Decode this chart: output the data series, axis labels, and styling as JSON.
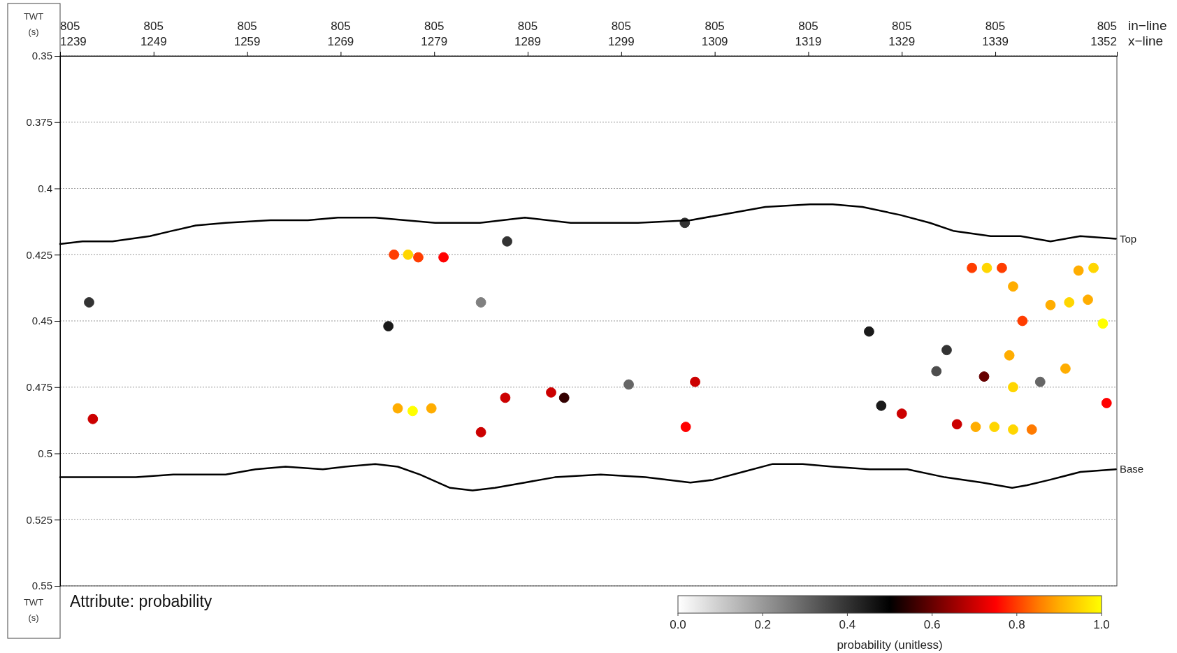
{
  "chart_data": {
    "type": "line",
    "xlabel": "x−line",
    "x2label": "in−line",
    "ylabel": "TWT\n(s)",
    "clabel": "probability  (unitless)",
    "xlim": [
      1239,
      1352
    ],
    "xticks": [
      1239,
      1249,
      1259,
      1269,
      1279,
      1289,
      1299,
      1309,
      1319,
      1329,
      1339,
      1352
    ],
    "ylim": [
      0.55,
      0.35
    ],
    "yticks": [
      0.35,
      0.375,
      0.4,
      0.425,
      0.45,
      0.475,
      0.5,
      0.525,
      0.55
    ],
    "grid": "y",
    "marker": "none",
    "line_style": "solid",
    "clim": [
      0,
      1
    ],
    "cticks": [
      {
        "value": 0,
        "label": "0.0"
      },
      {
        "value": 0.2,
        "label": "0.2"
      },
      {
        "value": 0.4,
        "label": "0.4"
      },
      {
        "value": 0.6,
        "label": "0.6"
      },
      {
        "value": 0.8,
        "label": "0.8"
      },
      {
        "value": 1,
        "label": "1.0"
      }
    ],
    "annotations": [
      "Attribute: probability",
      "805",
      "805",
      "805",
      "805",
      "805",
      "805",
      "805",
      "805",
      "805",
      "805",
      "805",
      "805"
    ],
    "series": [
      {
        "type": "scatter",
        "marker": "circle",
        "colors": [
          "#333333",
          "#ff3d00",
          "#ffd600",
          "#ff3d00",
          "#ff0000",
          "#333333",
          "#333333",
          "#1a1a1a",
          "#808080",
          "#1a1a1a",
          "#ff3d00",
          "#ffd600",
          "#ff3d00",
          "#ffad00",
          "#ff3d00",
          "#ffad00",
          "#ffd600",
          "#ffad00",
          "#ffd600",
          "#ffad00",
          "#ffff00",
          "#333333",
          "#ffad00",
          "#4d4d4d",
          "#ffad00",
          "#660000",
          "#ffd600",
          "#666666",
          "#ff0000",
          "#1a1a1a",
          "#cc0000",
          "#cc0000",
          "#ffad00",
          "#ffd600",
          "#ffd600",
          "#ff7a00",
          "#ffad00",
          "#ffff00",
          "#ffad00",
          "#cc0000",
          "#cc0000",
          "#cc0000",
          "#330000",
          "#cc0000",
          "#ff0000",
          "#cc0000",
          "#666666"
        ],
        "x": [
          1242.1,
          1274.7,
          1276.2,
          1277.3,
          1280.0,
          1286.8,
          1305.8,
          1274.1,
          1284.0,
          1325.5,
          1336.5,
          1338.1,
          1339.7,
          1340.9,
          1341.9,
          1347.9,
          1349.5,
          1344.9,
          1346.9,
          1348.9,
          1350.5,
          1333.8,
          1340.5,
          1332.7,
          1346.5,
          1337.8,
          1340.9,
          1343.8,
          1350.9,
          1326.8,
          1329.0,
          1334.9,
          1336.9,
          1338.9,
          1340.9,
          1342.9,
          1275.1,
          1276.7,
          1278.7,
          1242.5,
          1286.6,
          1291.5,
          1292.9,
          1284.0,
          1305.9,
          1306.9,
          1299.8
        ],
        "values": [
          0.443,
          0.425,
          0.425,
          0.426,
          0.426,
          0.42,
          0.413,
          0.452,
          0.443,
          0.454,
          0.43,
          0.43,
          0.43,
          0.437,
          0.45,
          0.431,
          0.43,
          0.444,
          0.443,
          0.442,
          0.451,
          0.461,
          0.463,
          0.469,
          0.468,
          0.471,
          0.475,
          0.473,
          0.481,
          0.482,
          0.485,
          0.489,
          0.49,
          0.49,
          0.491,
          0.491,
          0.483,
          0.484,
          0.483,
          0.487,
          0.479,
          0.477,
          0.479,
          0.492,
          0.49,
          0.473,
          0.474
        ],
        "cvalues": [
          0.4,
          0.8,
          0.95,
          0.8,
          0.75,
          0.4,
          0.4,
          0.45,
          0.25,
          0.45,
          0.8,
          0.95,
          0.8,
          0.9,
          0.8,
          0.9,
          0.95,
          0.9,
          0.95,
          0.9,
          1.0,
          0.4,
          0.9,
          0.35,
          0.9,
          0.6,
          0.95,
          0.3,
          0.75,
          0.45,
          0.7,
          0.7,
          0.9,
          0.95,
          0.95,
          0.85,
          0.9,
          1.0,
          0.9,
          0.7,
          0.7,
          0.7,
          0.55,
          0.7,
          0.75,
          0.7,
          0.3
        ]
      },
      {
        "name": "Top",
        "color": "#000000",
        "x": [
          1239.0,
          1241.4,
          1244.6,
          1248.6,
          1251.0,
          1253.5,
          1256.7,
          1261.5,
          1265.5,
          1268.7,
          1272.7,
          1275.9,
          1279.1,
          1283.9,
          1288.7,
          1293.6,
          1296.8,
          1300.8,
          1306.4,
          1309.6,
          1314.4,
          1319.2,
          1321.6,
          1324.8,
          1328.8,
          1332.0,
          1334.5,
          1338.5,
          1341.7,
          1344.9,
          1348.1,
          1351.9
        ],
        "values": [
          0.421,
          0.42,
          0.42,
          0.418,
          0.416,
          0.414,
          0.413,
          0.412,
          0.412,
          0.411,
          0.411,
          0.412,
          0.413,
          0.413,
          0.411,
          0.413,
          0.413,
          0.413,
          0.412,
          0.41,
          0.407,
          0.406,
          0.406,
          0.407,
          0.41,
          0.413,
          0.416,
          0.418,
          0.418,
          0.42,
          0.418,
          0.419
        ]
      },
      {
        "name": "Base",
        "color": "#000000",
        "x": [
          1239.0,
          1247.1,
          1251.1,
          1256.7,
          1258.3,
          1259.9,
          1263.1,
          1267.1,
          1269.5,
          1272.7,
          1275.1,
          1277.5,
          1280.7,
          1283.1,
          1285.5,
          1288.7,
          1291.9,
          1296.8,
          1301.6,
          1306.4,
          1308.8,
          1312.0,
          1315.2,
          1318.4,
          1321.6,
          1325.6,
          1329.6,
          1333.6,
          1337.6,
          1340.8,
          1342.4,
          1344.8,
          1348.1,
          1351.9
        ],
        "values": [
          0.509,
          0.509,
          0.508,
          0.508,
          0.507,
          0.506,
          0.505,
          0.506,
          0.505,
          0.504,
          0.505,
          0.508,
          0.513,
          0.514,
          0.513,
          0.511,
          0.509,
          0.508,
          0.509,
          0.511,
          0.51,
          0.507,
          0.504,
          0.504,
          0.505,
          0.506,
          0.506,
          0.509,
          0.511,
          0.513,
          0.512,
          0.51,
          0.507,
          0.506
        ]
      }
    ]
  }
}
